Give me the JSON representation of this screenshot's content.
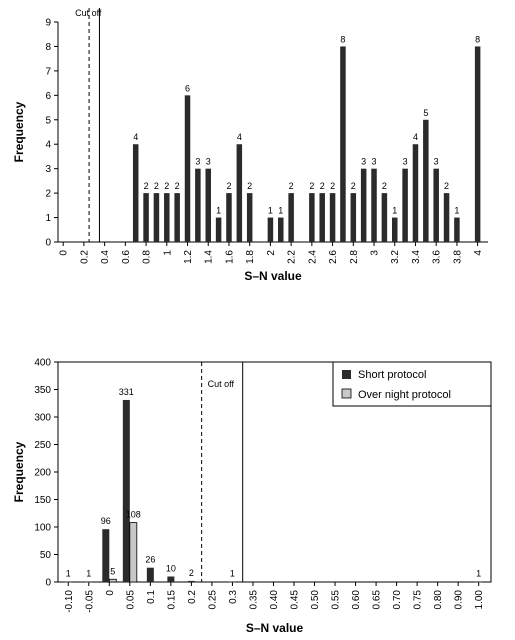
{
  "chart_data": [
    {
      "type": "bar",
      "xlabel": "S–N value",
      "ylabel": "Frequency",
      "ylim": [
        0,
        9
      ],
      "yticks": [
        "0",
        "1",
        "2",
        "3",
        "4",
        "5",
        "6",
        "7",
        "8",
        "9"
      ],
      "xlim": [
        -0.05,
        4.1
      ],
      "xticks": [
        "0",
        "0.2",
        "0.4",
        "0.6",
        "0.8",
        "1",
        "1.2",
        "1.4",
        "1.6",
        "1.8",
        "2",
        "2.2",
        "2.4",
        "2.6",
        "2.8",
        "3",
        "3.2",
        "3.4",
        "3.6",
        "3.8",
        "4"
      ],
      "annotation": {
        "text": "Cut off",
        "dashed_x": 0.25,
        "solid_x": 0.35
      },
      "series": [
        {
          "color": "#2b2b2b",
          "points": [
            {
              "x": 0.7,
              "y": 4
            },
            {
              "x": 0.8,
              "y": 2
            },
            {
              "x": 0.9,
              "y": 2
            },
            {
              "x": 1.0,
              "y": 2
            },
            {
              "x": 1.1,
              "y": 2
            },
            {
              "x": 1.2,
              "y": 6
            },
            {
              "x": 1.3,
              "y": 3
            },
            {
              "x": 1.4,
              "y": 3
            },
            {
              "x": 1.5,
              "y": 1
            },
            {
              "x": 1.6,
              "y": 2
            },
            {
              "x": 1.7,
              "y": 4
            },
            {
              "x": 1.8,
              "y": 2
            },
            {
              "x": 2.0,
              "y": 1
            },
            {
              "x": 2.1,
              "y": 1
            },
            {
              "x": 2.2,
              "y": 2
            },
            {
              "x": 2.4,
              "y": 2
            },
            {
              "x": 2.5,
              "y": 2
            },
            {
              "x": 2.6,
              "y": 2
            },
            {
              "x": 2.7,
              "y": 8
            },
            {
              "x": 2.8,
              "y": 2
            },
            {
              "x": 2.9,
              "y": 3
            },
            {
              "x": 3.0,
              "y": 3
            },
            {
              "x": 3.1,
              "y": 2
            },
            {
              "x": 3.2,
              "y": 1
            },
            {
              "x": 3.3,
              "y": 3
            },
            {
              "x": 3.4,
              "y": 4
            },
            {
              "x": 3.5,
              "y": 5
            },
            {
              "x": 3.6,
              "y": 3
            },
            {
              "x": 3.7,
              "y": 2
            },
            {
              "x": 3.8,
              "y": 1
            },
            {
              "x": 4.0,
              "y": 8
            }
          ]
        }
      ]
    },
    {
      "type": "bar",
      "xlabel": "S–N value",
      "ylabel": "Frequency",
      "ylim": [
        0,
        400
      ],
      "yticks": [
        "0",
        "50",
        "100",
        "150",
        "200",
        "250",
        "300",
        "350",
        "400"
      ],
      "categories": [
        "-0.10",
        "-0.05",
        "0",
        "0.05",
        "0.1",
        "0.15",
        "0.2",
        "0.25",
        "0.3",
        "0.35",
        "0.40",
        "0.45",
        "0.50",
        "0.55",
        "0.60",
        "0.65",
        "0.70",
        "0.75",
        "0.80",
        "0.90",
        "1.00"
      ],
      "legend": {
        "position": "top-right"
      },
      "annotation": {
        "text": "Cut off",
        "dashed_after_index": 6,
        "solid_after_index": 8
      },
      "series": [
        {
          "name": "Short protocol",
          "color": "#2b2b2b",
          "values": [
            1,
            1,
            96,
            331,
            26,
            10,
            2,
            null,
            1,
            null,
            null,
            null,
            null,
            null,
            null,
            null,
            null,
            null,
            null,
            null,
            1
          ]
        },
        {
          "name": "Over night protocol",
          "color": "#c8c8c8",
          "values": [
            null,
            null,
            5,
            108,
            null,
            null,
            null,
            null,
            null,
            null,
            null,
            null,
            null,
            null,
            null,
            null,
            null,
            null,
            null,
            null,
            null
          ]
        }
      ]
    }
  ]
}
